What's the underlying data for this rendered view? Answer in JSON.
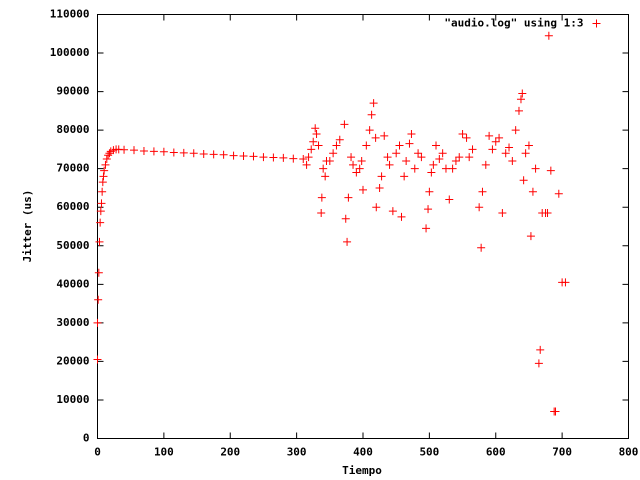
{
  "chart_data": {
    "type": "scatter",
    "x_label": "Tiempo",
    "y_label": "Jitter (us)",
    "xlim": [
      0,
      800
    ],
    "xticks": [
      0,
      100,
      200,
      300,
      400,
      500,
      600,
      700,
      800
    ],
    "ylim": [
      0,
      110000
    ],
    "yticks": [
      0,
      10000,
      20000,
      30000,
      40000,
      50000,
      60000,
      70000,
      80000,
      90000,
      100000,
      110000
    ],
    "grid": false,
    "legend_position": "top-right",
    "series": [
      {
        "name": "\"audio.log\" using 1:3",
        "color": "#ff0000",
        "x": [
          0,
          0,
          1,
          2,
          3,
          4,
          5,
          6,
          7,
          8,
          9,
          10,
          12,
          14,
          16,
          18,
          20,
          24,
          28,
          32,
          40,
          55,
          70,
          85,
          100,
          115,
          130,
          145,
          160,
          175,
          190,
          205,
          220,
          235,
          250,
          265,
          280,
          295,
          310,
          315,
          318,
          322,
          325,
          328,
          330,
          333,
          337,
          338,
          340,
          343,
          345,
          350,
          355,
          360,
          365,
          372,
          374,
          376,
          378,
          382,
          385,
          390,
          395,
          398,
          400,
          405,
          410,
          413,
          416,
          419,
          420,
          425,
          428,
          432,
          437,
          440,
          445,
          450,
          455,
          458,
          462,
          465,
          470,
          473,
          478,
          483,
          488,
          495,
          498,
          500,
          503,
          506,
          510,
          515,
          520,
          525,
          530,
          535,
          540,
          545,
          550,
          556,
          560,
          565,
          575,
          578,
          580,
          585,
          590,
          595,
          600,
          605,
          610,
          615,
          620,
          625,
          630,
          635,
          638,
          640,
          642,
          645,
          650,
          653,
          656,
          660,
          665,
          667,
          670,
          675,
          678,
          680,
          683,
          688,
          690,
          695,
          700,
          705
        ],
        "values": [
          30000,
          20500,
          36000,
          43000,
          51000,
          56000,
          59000,
          61000,
          64000,
          66500,
          68000,
          69500,
          71000,
          72500,
          73500,
          74000,
          74500,
          74800,
          75000,
          75000,
          74900,
          74800,
          74600,
          74500,
          74400,
          74200,
          74100,
          74000,
          73800,
          73700,
          73600,
          73400,
          73300,
          73200,
          73000,
          72900,
          72800,
          72600,
          72500,
          71000,
          73000,
          75000,
          77000,
          80500,
          79000,
          76000,
          58500,
          62500,
          70000,
          68000,
          72000,
          72000,
          74000,
          76000,
          77500,
          81500,
          57000,
          51000,
          62500,
          73000,
          71000,
          69000,
          70000,
          72000,
          64500,
          76000,
          80000,
          84000,
          87000,
          78000,
          60000,
          65000,
          68000,
          78500,
          73000,
          71000,
          59000,
          74000,
          76000,
          57500,
          68000,
          72000,
          76500,
          79000,
          70000,
          74000,
          73000,
          54500,
          59500,
          64000,
          69000,
          71000,
          76000,
          72500,
          74000,
          70000,
          62000,
          70000,
          72000,
          73000,
          79000,
          78000,
          73000,
          75000,
          60000,
          49500,
          64000,
          71000,
          78500,
          75000,
          77000,
          78000,
          58500,
          74000,
          75500,
          72000,
          80000,
          85000,
          88000,
          89500,
          67000,
          74000,
          76000,
          52500,
          64000,
          70000,
          19500,
          23000,
          58500,
          58500,
          58500,
          104500,
          69500,
          7000,
          7000,
          63500,
          40500,
          40500
        ]
      }
    ]
  }
}
